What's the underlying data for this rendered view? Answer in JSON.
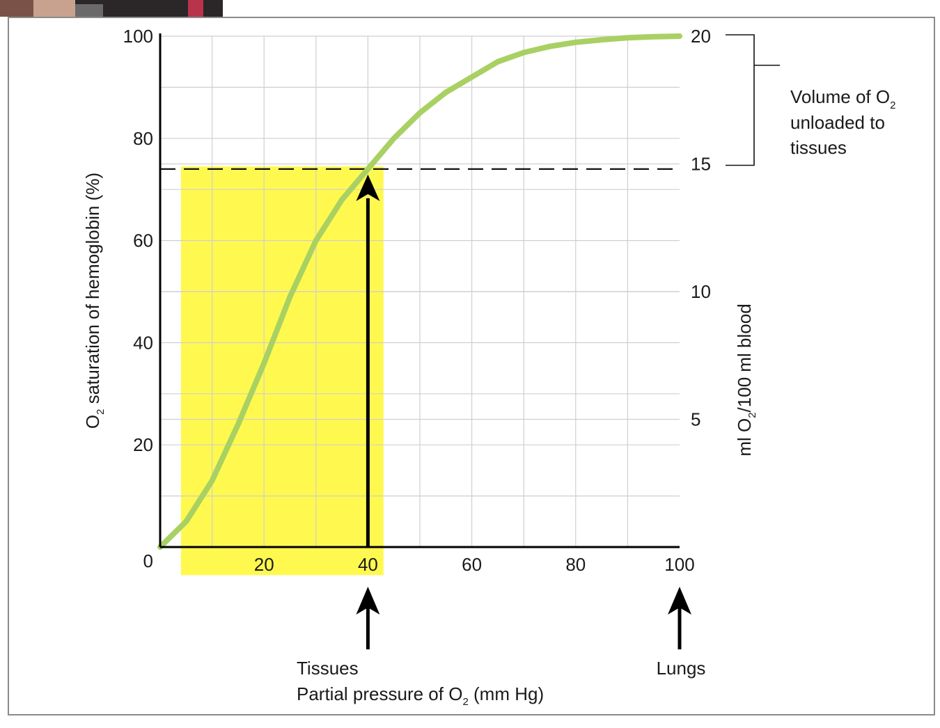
{
  "chart_data": {
    "type": "line",
    "xlabel": "Partial pressure of O",
    "xlabel_sub": "2",
    "xlabel_unit": " (mm Hg)",
    "ylabel": "O",
    "ylabel_sub": "2",
    "ylabel_rest": " saturation of hemoglobin (%)",
    "y2label": "ml O",
    "y2label_sub": "2",
    "y2label_rest": "/100 ml blood",
    "x_ticks": [
      "20",
      "40",
      "60",
      "80",
      "100"
    ],
    "x_tick_values": [
      20,
      40,
      60,
      80,
      100
    ],
    "y_ticks": [
      "0",
      "20",
      "40",
      "60",
      "80",
      "100"
    ],
    "y_tick_values": [
      0,
      20,
      40,
      60,
      80,
      100
    ],
    "y2_ticks": [
      "5",
      "10",
      "15",
      "20"
    ],
    "y2_tick_values": [
      5,
      10,
      15,
      20
    ],
    "xlim": [
      0,
      100
    ],
    "ylim": [
      0,
      100
    ],
    "y2lim": [
      0,
      20
    ],
    "grid": true,
    "series": [
      {
        "color": "#a9d063",
        "x": [
          0,
          5,
          10,
          15,
          20,
          25,
          30,
          35,
          40,
          45,
          50,
          55,
          60,
          65,
          70,
          75,
          80,
          85,
          90,
          95,
          100
        ],
        "y": [
          0,
          5,
          13,
          24,
          36,
          49,
          60,
          68,
          74,
          80,
          85,
          89,
          92,
          95,
          96.8,
          98,
          98.8,
          99.3,
          99.7,
          99.9,
          100
        ]
      }
    ],
    "highlight": {
      "x_range": [
        4,
        43
      ],
      "y_range": [
        -5.5,
        74.5
      ],
      "color": "#fff94f"
    },
    "reference_line": {
      "y": 74,
      "style": "dashed"
    },
    "arrow_on_chart": {
      "x": 40,
      "y_from": 0,
      "y_to": 74
    },
    "annotations": {
      "volume_line1": "Volume of O",
      "volume_sub": "2",
      "volume_line2": "unloaded to",
      "volume_line3": "tissues",
      "bracket_y2_range": [
        15,
        20
      ],
      "tissues": {
        "label": "Tissues",
        "x": 40
      },
      "lungs": {
        "label": "Lungs",
        "x": 100
      }
    }
  }
}
